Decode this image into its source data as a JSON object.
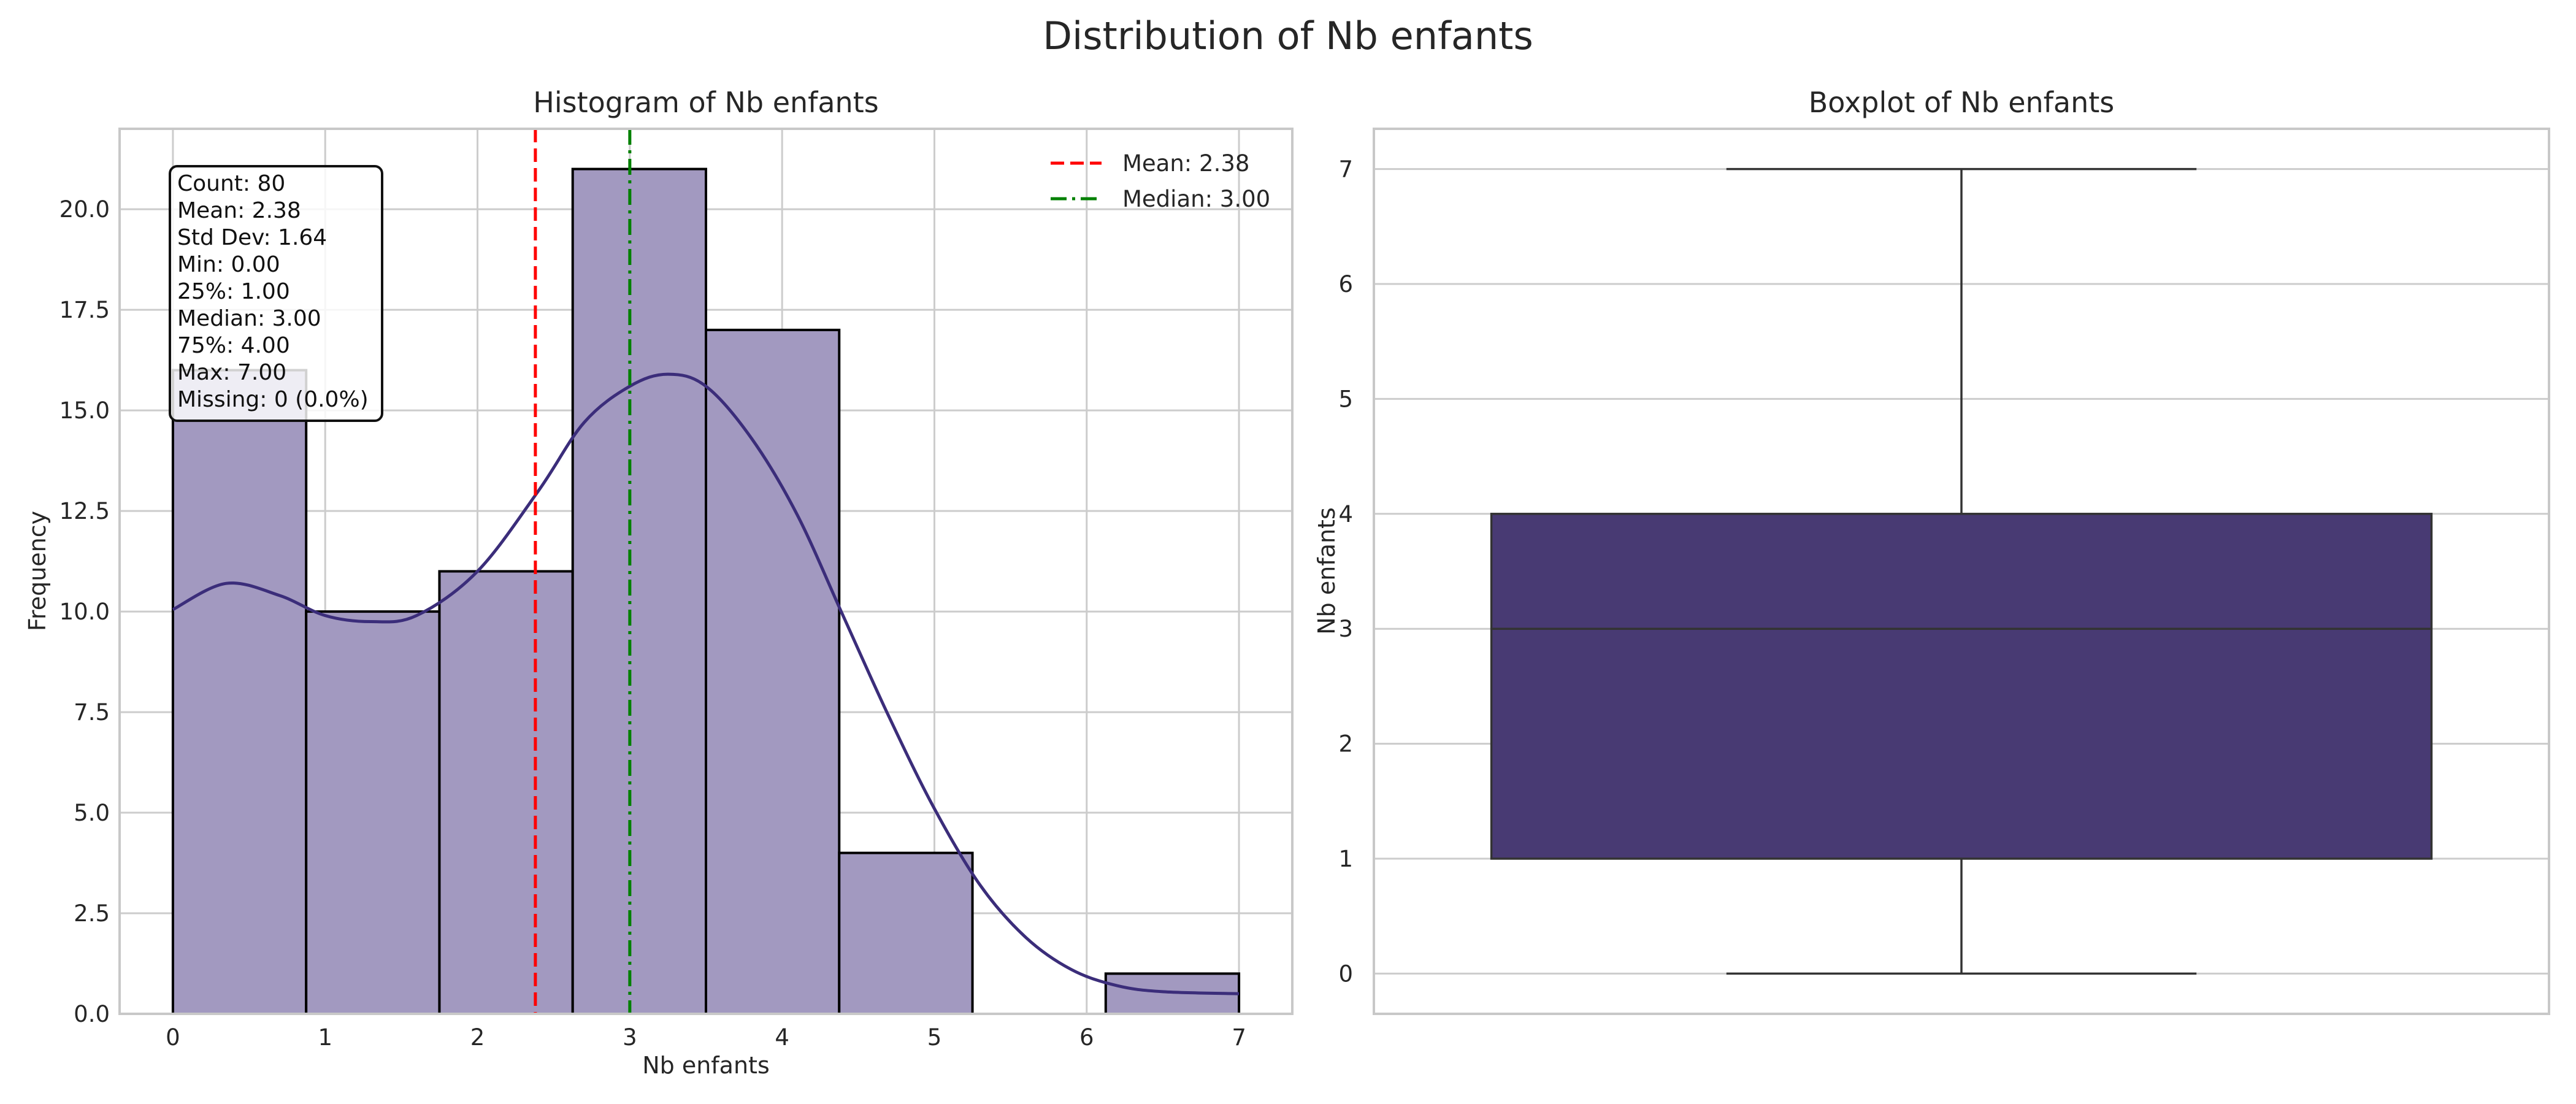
{
  "figure": {
    "title": "Distribution of Nb enfants"
  },
  "colors": {
    "hist_fill": "#a299c0",
    "bar_edge": "#000000",
    "kde_line": "#3b2d7a",
    "mean_line": "#ff0000",
    "median_line": "#008000",
    "box_fill": "#483a73",
    "grid": "#cccccc",
    "frame": "#c8c8c8"
  },
  "histogram": {
    "title": "Histogram of Nb enfants",
    "xlabel": "Nb enfants",
    "ylabel": "Frequency",
    "xlim": [
      -0.35,
      7.35
    ],
    "ylim": [
      0,
      22
    ],
    "xticks": [
      0,
      1,
      2,
      3,
      4,
      5,
      6,
      7
    ],
    "yticks": [
      0.0,
      2.5,
      5.0,
      7.5,
      10.0,
      12.5,
      15.0,
      17.5,
      20.0
    ],
    "legend": [
      {
        "label": "Mean: 2.38",
        "style": "dashed",
        "color": "#ff0000"
      },
      {
        "label": "Median: 3.00",
        "style": "dashdot",
        "color": "#008000"
      }
    ],
    "stats_box": [
      "Count: 80",
      "Mean: 2.38",
      "Std Dev: 1.64",
      "Min: 0.00",
      "25%: 1.00",
      "Median: 3.00",
      "75%: 4.00",
      "Max: 7.00",
      "Missing: 0 (0.0%)"
    ]
  },
  "boxplot": {
    "title": "Boxplot of Nb enfants",
    "ylabel": "Nb enfants",
    "ylim": [
      -0.35,
      7.35
    ],
    "yticks": [
      0,
      1,
      2,
      3,
      4,
      5,
      6,
      7
    ]
  },
  "chart_data": [
    {
      "type": "bar",
      "subtype": "histogram",
      "bins": [
        {
          "start": 0.0,
          "end": 0.875,
          "count": 16
        },
        {
          "start": 0.875,
          "end": 1.75,
          "count": 10
        },
        {
          "start": 1.75,
          "end": 2.625,
          "count": 11
        },
        {
          "start": 2.625,
          "end": 3.5,
          "count": 21
        },
        {
          "start": 3.5,
          "end": 4.375,
          "count": 17
        },
        {
          "start": 4.375,
          "end": 5.25,
          "count": 4
        },
        {
          "start": 5.25,
          "end": 6.125,
          "count": 0
        },
        {
          "start": 6.125,
          "end": 7.0,
          "count": 1
        }
      ],
      "kde": {
        "x": [
          0.0,
          0.35,
          0.7,
          1.0,
          1.3,
          1.6,
          2.0,
          2.4,
          2.7,
          3.0,
          3.25,
          3.5,
          3.8,
          4.1,
          4.4,
          4.7,
          5.0,
          5.3,
          5.6,
          5.9,
          6.2,
          6.5,
          7.0
        ],
        "y": [
          10.05,
          10.7,
          10.4,
          9.9,
          9.75,
          9.9,
          11.0,
          13.0,
          14.7,
          15.6,
          15.9,
          15.6,
          14.3,
          12.4,
          9.9,
          7.4,
          5.1,
          3.2,
          1.9,
          1.1,
          0.7,
          0.55,
          0.5
        ]
      },
      "mean": 2.38,
      "median": 3.0,
      "xlabel": "Nb enfants",
      "ylabel": "Frequency"
    },
    {
      "type": "box",
      "min": 0,
      "q1": 1,
      "median": 3,
      "q3": 4,
      "max": 7,
      "ylabel": "Nb enfants"
    }
  ]
}
